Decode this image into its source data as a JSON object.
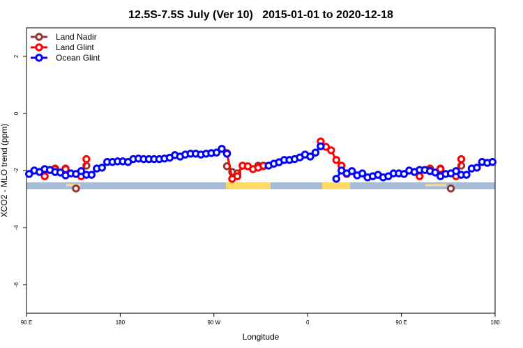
{
  "chart_data": {
    "type": "line",
    "title": "12.5S-7.5S July (Ver 10)   2015-01-01 to 2020-12-18",
    "xlabel": "Longitude",
    "ylabel": "XCO2 - MLO trend (ppm)",
    "xlim": [
      90,
      540
    ],
    "ylim": [
      -7,
      3
    ],
    "xticks": [
      {
        "value": 90,
        "label": "90 E"
      },
      180,
      {
        "value": 270,
        "label": "90 W"
      },
      {
        "value": 360,
        "label": "0"
      },
      {
        "value": 450,
        "label": "90 E"
      },
      {
        "value": 540,
        "label": "180"
      }
    ],
    "yticks": [
      2,
      0,
      -2,
      -4,
      -6
    ],
    "legend": "top-left",
    "x": [
      92.5,
      97.5,
      102.5,
      107.5,
      112.5,
      117.5,
      122.5,
      127.5,
      132.5,
      137.5,
      142.5,
      147.5,
      152.5,
      157.5,
      162.5,
      167.5,
      172.5,
      177.5,
      182.5,
      187.5,
      192.5,
      197.5,
      202.5,
      207.5,
      212.5,
      217.5,
      222.5,
      227.5,
      232.5,
      237.5,
      242.5,
      247.5,
      252.5,
      257.5,
      262.5,
      267.5,
      272.5,
      277.5,
      282.5,
      287.5,
      292.5,
      297.5,
      302.5,
      307.5,
      312.5,
      317.5,
      322.5,
      327.5,
      332.5,
      337.5,
      342.5,
      347.5,
      352.5,
      357.5,
      362.5,
      367.5,
      372.5,
      377.5,
      382.5,
      387.5,
      392.5,
      397.5,
      402.5,
      407.5,
      412.5,
      417.5,
      422.5,
      427.5,
      432.5,
      437.5,
      442.5,
      447.5,
      452.5,
      457.5,
      462.5,
      467.5,
      472.5,
      477.5,
      482.5,
      487.5,
      492.5,
      497.5,
      502.5,
      507.5,
      512.5,
      517.5,
      522.5,
      527.5,
      532.5,
      537.5
    ],
    "series": [
      {
        "name": "Land Nadir",
        "color": "#993333",
        "values": [
          null,
          null,
          null,
          null,
          null,
          -1.93,
          null,
          -1.93,
          null,
          -2.63,
          null,
          -1.83,
          null,
          null,
          null,
          null,
          null,
          null,
          null,
          null,
          null,
          null,
          null,
          null,
          null,
          null,
          null,
          null,
          null,
          null,
          null,
          null,
          null,
          null,
          null,
          null,
          null,
          null,
          -1.85,
          -2.05,
          -2.1,
          -1.83,
          null,
          null,
          -1.83,
          -1.85,
          null,
          null,
          null,
          null,
          null,
          null,
          null,
          null,
          null,
          null,
          null,
          null,
          null,
          null,
          null,
          null,
          null,
          null,
          null,
          null,
          null,
          null,
          null,
          null,
          null,
          null,
          null,
          null,
          null,
          null,
          null,
          -1.93,
          null,
          -1.93,
          null,
          -2.63,
          null,
          -1.83,
          null,
          null,
          null,
          null,
          null,
          null
        ]
      },
      {
        "name": "Land Glint",
        "color": "#ff0000",
        "values": [
          null,
          null,
          null,
          -2.2,
          null,
          -1.95,
          null,
          -1.95,
          null,
          null,
          -2.2,
          -1.6,
          null,
          null,
          null,
          null,
          null,
          null,
          null,
          null,
          null,
          null,
          null,
          null,
          null,
          null,
          null,
          null,
          null,
          null,
          null,
          null,
          null,
          null,
          null,
          null,
          null,
          null,
          -1.39,
          -2.29,
          -2.2,
          -1.83,
          -1.85,
          -1.95,
          -1.9,
          -1.83,
          null,
          null,
          null,
          null,
          null,
          null,
          null,
          null,
          null,
          null,
          -0.98,
          -1.17,
          -1.29,
          -1.63,
          -1.83,
          -2.12,
          null,
          null,
          null,
          null,
          null,
          null,
          null,
          null,
          null,
          null,
          null,
          null,
          null,
          -2.2,
          null,
          -1.95,
          null,
          -1.95,
          null,
          null,
          -2.2,
          -1.6,
          null,
          null,
          null,
          null,
          null,
          null
        ]
      },
      {
        "name": "Ocean Glint",
        "color": "#0000ff",
        "values": [
          -2.12,
          -2.0,
          -2.05,
          -1.95,
          -1.98,
          -2.05,
          -2.07,
          -2.17,
          -2.1,
          -2.12,
          -2.02,
          -2.15,
          -2.15,
          -1.93,
          -1.9,
          -1.7,
          -1.7,
          -1.68,
          -1.68,
          -1.7,
          -1.6,
          -1.58,
          -1.6,
          -1.6,
          -1.6,
          -1.6,
          -1.58,
          -1.55,
          -1.46,
          -1.51,
          -1.44,
          -1.41,
          -1.41,
          -1.44,
          -1.41,
          -1.39,
          -1.37,
          -1.24,
          -1.41,
          null,
          null,
          null,
          null,
          null,
          null,
          null,
          -1.83,
          -1.76,
          -1.71,
          -1.63,
          -1.63,
          -1.6,
          -1.54,
          -1.44,
          -1.51,
          -1.37,
          -1.15,
          null,
          null,
          -2.29,
          -2.0,
          -2.1,
          -2.02,
          -2.17,
          -2.1,
          -2.24,
          -2.2,
          -2.15,
          -2.24,
          -2.2,
          -2.1,
          -2.1,
          -2.12,
          -2.0,
          -2.05,
          -1.98,
          -1.98,
          -2.02,
          -2.07,
          -2.2,
          -2.12,
          -2.1,
          -2.02,
          -2.15,
          -2.15,
          -1.93,
          -1.9,
          -1.7,
          -1.73,
          -1.7
        ]
      }
    ]
  }
}
